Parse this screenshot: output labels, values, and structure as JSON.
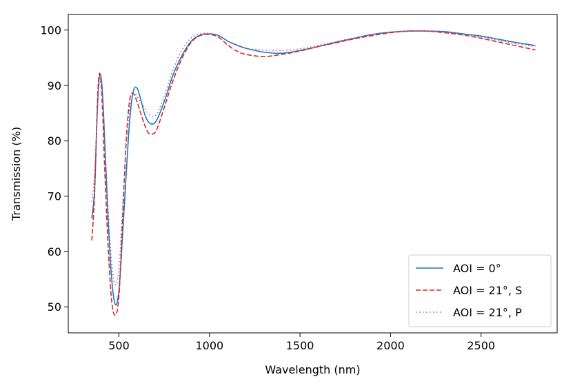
{
  "chart_data": {
    "type": "line",
    "xlabel": "Wavelength (nm)",
    "ylabel": "Transmission (%)",
    "xlim": [
      220,
      2920
    ],
    "ylim": [
      45.3,
      102.8
    ],
    "x_ticks": [
      500,
      1000,
      1500,
      2000,
      2500
    ],
    "y_ticks": [
      50,
      60,
      70,
      80,
      90,
      100
    ],
    "grid": false,
    "legend_position": "lower-right",
    "series": [
      {
        "name": "AOI = 0°",
        "color": "#1f77b4",
        "style": "solid",
        "x": [
          350,
          365,
          380,
          390,
          400,
          410,
          420,
          440,
          460,
          480,
          500,
          520,
          540,
          560,
          580,
          600,
          620,
          640,
          660,
          680,
          700,
          720,
          760,
          800,
          850,
          900,
          950,
          1000,
          1050,
          1100,
          1150,
          1200,
          1300,
          1400,
          1500,
          1600,
          1700,
          1800,
          1900,
          2000,
          2100,
          2200,
          2300,
          2400,
          2500,
          2600,
          2700,
          2800
        ],
        "y": [
          66,
          71,
          85,
          91,
          91.7,
          88,
          81,
          66,
          55,
          50.4,
          53,
          63,
          74,
          84,
          89,
          89.5,
          87.5,
          85,
          83.5,
          83,
          83.3,
          84.5,
          88,
          92,
          95.5,
          98,
          99.1,
          99.3,
          99,
          98,
          97.3,
          96.7,
          96,
          95.8,
          96.3,
          97,
          97.8,
          98.5,
          99.2,
          99.6,
          99.8,
          99.8,
          99.7,
          99.3,
          98.9,
          98.3,
          97.7,
          97.2
        ]
      },
      {
        "name": "AOI = 21°, S",
        "color": "#d62728",
        "style": "dashed",
        "x": [
          350,
          365,
          380,
          390,
          400,
          410,
          420,
          440,
          460,
          480,
          500,
          520,
          540,
          560,
          580,
          600,
          620,
          640,
          660,
          680,
          700,
          720,
          760,
          800,
          850,
          900,
          950,
          1000,
          1050,
          1100,
          1150,
          1200,
          1300,
          1400,
          1500,
          1600,
          1700,
          1800,
          1900,
          2000,
          2100,
          2200,
          2300,
          2400,
          2500,
          2600,
          2700,
          2800
        ],
        "y": [
          62,
          70,
          86,
          91.8,
          91,
          85,
          76,
          61,
          51,
          48.5,
          52,
          66,
          80,
          87.5,
          88.5,
          87,
          85,
          83,
          81.5,
          81.2,
          81.5,
          83,
          87,
          91,
          95,
          97.8,
          99,
          99.2,
          98.7,
          97.3,
          96.2,
          95.6,
          95.2,
          95.6,
          96.2,
          97,
          97.7,
          98.4,
          99,
          99.5,
          99.8,
          99.8,
          99.5,
          99.1,
          98.5,
          97.8,
          97.1,
          96.4
        ]
      },
      {
        "name": "AOI = 21°, P",
        "color": "#9467bd",
        "style": "dotted",
        "x": [
          350,
          365,
          380,
          390,
          400,
          410,
          420,
          440,
          460,
          480,
          500,
          520,
          540,
          560,
          580,
          600,
          620,
          640,
          660,
          680,
          700,
          720,
          760,
          800,
          850,
          900,
          950,
          1000,
          1050,
          1100,
          1150,
          1200,
          1300,
          1400,
          1500,
          1600,
          1700,
          1800,
          1900,
          2000,
          2100,
          2200,
          2300,
          2400,
          2500,
          2600,
          2700,
          2800
        ],
        "y": [
          69,
          74,
          85,
          90,
          90.3,
          87,
          81,
          68,
          58,
          54,
          57,
          68,
          79,
          86,
          88.5,
          88,
          87,
          86,
          85,
          84.5,
          84.5,
          85.5,
          89,
          93,
          96.5,
          98.6,
          99.3,
          99.4,
          99,
          98,
          97.2,
          96.7,
          96.4,
          96.3,
          96.6,
          97.2,
          97.9,
          98.6,
          99.2,
          99.6,
          99.8,
          99.8,
          99.6,
          99.2,
          98.7,
          98.1,
          97.5,
          97
        ]
      }
    ]
  }
}
